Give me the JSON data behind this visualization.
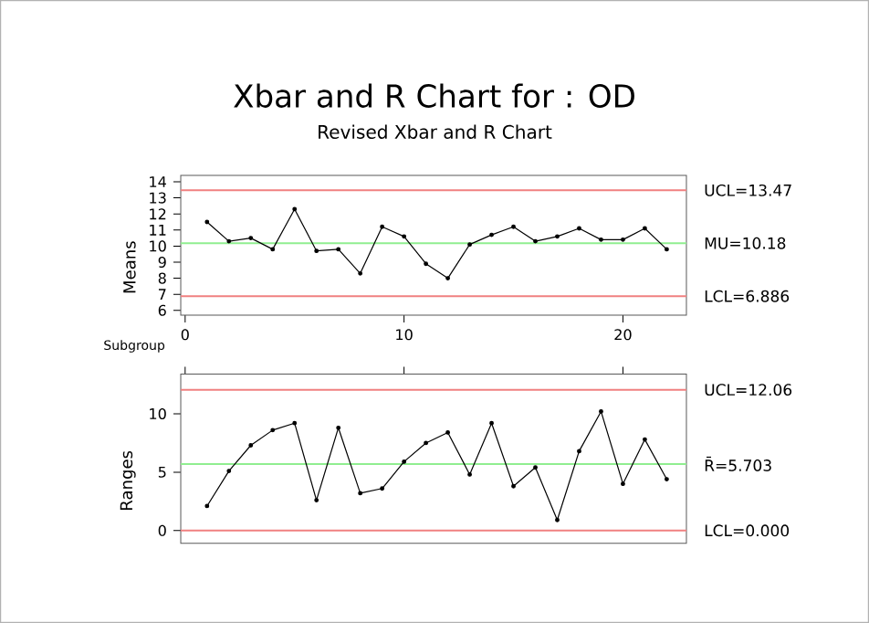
{
  "chart_data": [
    {
      "type": "line",
      "title": "Xbar and R Chart for : OD",
      "subtitle": "Revised Xbar and R Chart",
      "xlabel": "Subgroup",
      "ylabel": "Means",
      "x": [
        1,
        2,
        3,
        4,
        5,
        6,
        7,
        8,
        9,
        10,
        11,
        12,
        13,
        14,
        15,
        16,
        17,
        18,
        19,
        20,
        21,
        22
      ],
      "values": [
        11.5,
        10.3,
        10.5,
        9.8,
        12.3,
        9.7,
        9.8,
        8.3,
        11.2,
        10.6,
        8.9,
        8.0,
        10.1,
        10.7,
        11.2,
        10.3,
        10.6,
        11.1,
        10.4,
        10.4,
        11.1,
        9.8
      ],
      "color": "#000000",
      "marker": "circle",
      "line_style": "solid",
      "xlim": [
        -0.2,
        22.9
      ],
      "ylim": [
        5.7,
        14.4
      ],
      "xticks": [
        0,
        10,
        20
      ],
      "yticks": [
        6,
        7,
        8,
        9,
        10,
        11,
        12,
        13,
        14
      ],
      "ref_lines": [
        {
          "axis": "y",
          "value": 13.47,
          "label": "UCL=13.47",
          "color": "#f08080"
        },
        {
          "axis": "y",
          "value": 10.18,
          "label": "MU=10.18",
          "color": "#90ee90"
        },
        {
          "axis": "y",
          "value": 6.886,
          "label": "LCL=6.886",
          "color": "#f08080"
        }
      ]
    },
    {
      "type": "line",
      "ylabel": "Ranges",
      "x": [
        1,
        2,
        3,
        4,
        5,
        6,
        7,
        8,
        9,
        10,
        11,
        12,
        13,
        14,
        15,
        16,
        17,
        18,
        19,
        20,
        21,
        22
      ],
      "values": [
        2.1,
        5.1,
        7.3,
        8.6,
        9.2,
        2.6,
        8.8,
        3.2,
        3.6,
        5.9,
        7.5,
        8.4,
        4.8,
        9.2,
        3.8,
        5.4,
        0.9,
        6.8,
        10.2,
        4.0,
        7.8,
        4.4
      ],
      "color": "#000000",
      "marker": "circle",
      "line_style": "solid",
      "xlim": [
        -0.2,
        22.9
      ],
      "ylim": [
        -1.1,
        13.4
      ],
      "xticks": [
        {
          "value": 0,
          "label": null
        },
        {
          "value": 10,
          "label": null
        },
        {
          "value": 20,
          "label": null
        }
      ],
      "yticks": [
        0,
        5,
        10
      ],
      "tick_labels": "y",
      "ref_lines": [
        {
          "axis": "y",
          "value": 12.06,
          "label": "UCL=12.06",
          "color": "#f08080"
        },
        {
          "axis": "y",
          "value": 5.703,
          "label": "R̄=5.703",
          "color": "#90ee90"
        },
        {
          "axis": "y",
          "value": 0.0,
          "label": "LCL=0.000",
          "color": "#f08080"
        }
      ]
    }
  ]
}
